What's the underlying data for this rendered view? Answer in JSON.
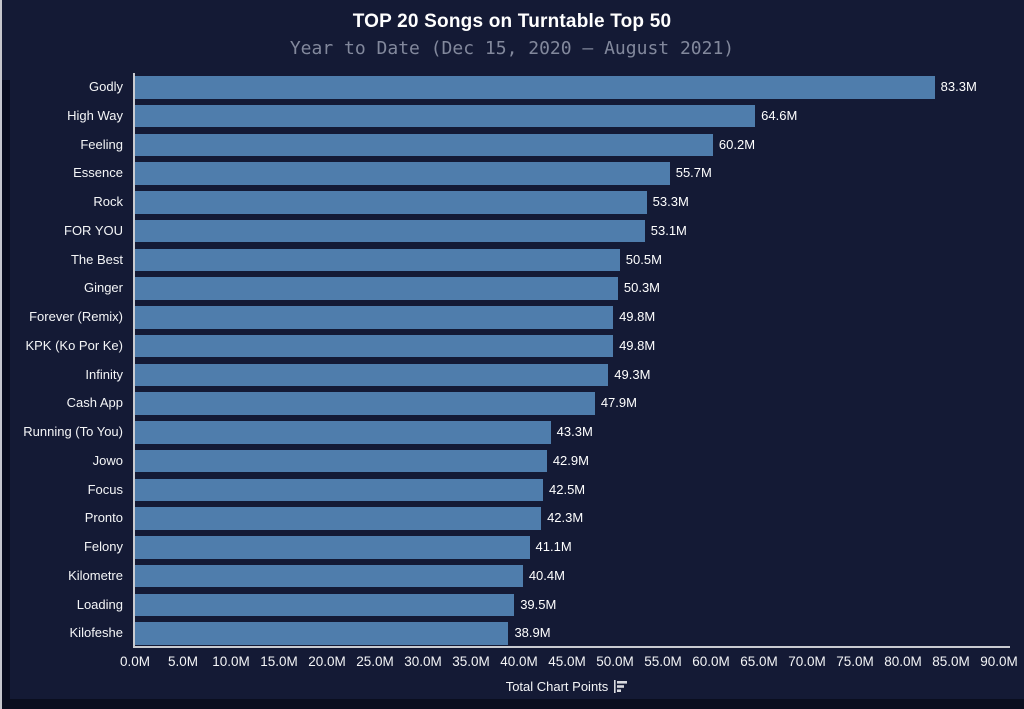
{
  "figure": {
    "title": "TOP 20 Songs on Turntable Top 50",
    "subtitle": "Year to Date (Dec 15, 2020 — August 2021)"
  },
  "chart_data": {
    "type": "bar",
    "orientation": "horizontal",
    "title": "TOP 20 Songs on Turntable Top 50",
    "subtitle": "Year to Date (Dec 15, 2020 — August 2021)",
    "xlabel": "Total Chart Points",
    "xlabel_icon": "bar-chart-icon",
    "xlim_millions": [
      0,
      90
    ],
    "xtick_labels": [
      "0.0M",
      "5.0M",
      "10.0M",
      "15.0M",
      "20.0M",
      "25.0M",
      "30.0M",
      "35.0M",
      "40.0M",
      "45.0M",
      "50.0M",
      "55.0M",
      "60.0M",
      "65.0M",
      "70.0M",
      "75.0M",
      "80.0M",
      "85.0M",
      "90.0M"
    ],
    "xtick_values_millions": [
      0,
      5,
      10,
      15,
      20,
      25,
      30,
      35,
      40,
      45,
      50,
      55,
      60,
      65,
      70,
      75,
      80,
      85,
      90
    ],
    "categories": [
      "Godly",
      "High Way",
      "Feeling",
      "Essence",
      "Rock",
      "FOR YOU",
      "The Best",
      "Ginger",
      "Forever (Remix)",
      "KPK (Ko Por Ke)",
      "Infinity",
      "Cash App",
      "Running (To You)",
      "Jowo",
      "Focus",
      "Pronto",
      "Felony",
      "Kilometre",
      "Loading",
      "Kilofeshe"
    ],
    "values_millions": [
      83.3,
      64.6,
      60.2,
      55.7,
      53.3,
      53.1,
      50.5,
      50.3,
      49.8,
      49.8,
      49.3,
      47.9,
      43.3,
      42.9,
      42.5,
      42.3,
      41.1,
      40.4,
      39.5,
      38.9
    ],
    "value_labels": [
      "83.3M",
      "64.6M",
      "60.2M",
      "55.7M",
      "53.3M",
      "53.1M",
      "50.5M",
      "50.3M",
      "49.8M",
      "49.8M",
      "49.3M",
      "47.9M",
      "43.3M",
      "42.9M",
      "42.5M",
      "42.3M",
      "41.1M",
      "40.4M",
      "39.5M",
      "38.9M"
    ],
    "grid": false,
    "legend": null,
    "colors": {
      "bar": "#4f7dac",
      "figure_background": "#141a35",
      "page_edge": "#0a0e1f",
      "axis_line": "#c9cbd1",
      "title_text": "#ffffff",
      "subtitle_text": "#82889c",
      "tick_text": "#f4f5f7"
    }
  }
}
